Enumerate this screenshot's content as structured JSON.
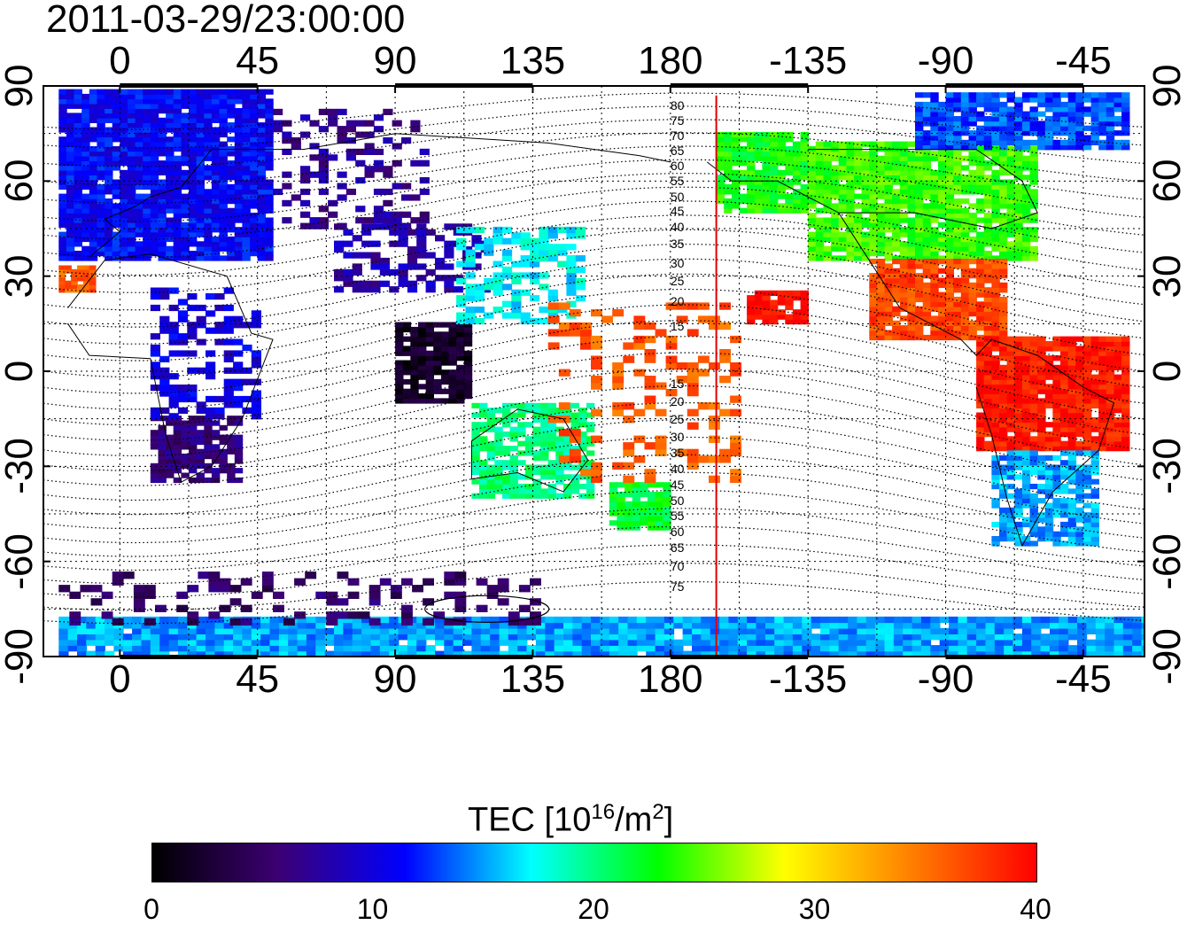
{
  "timestamp": "2011-03-29/23:00:00",
  "map": {
    "x_ticks": [
      {
        "lon": 0,
        "label": "0"
      },
      {
        "lon": 45,
        "label": "45"
      },
      {
        "lon": 90,
        "label": "90"
      },
      {
        "lon": 135,
        "label": "135"
      },
      {
        "lon": 180,
        "label": "180"
      },
      {
        "lon": 225,
        "label": "-135"
      },
      {
        "lon": 270,
        "label": "-90"
      },
      {
        "lon": 315,
        "label": "-45"
      }
    ],
    "y_ticks": [
      {
        "lat": 90,
        "label": "90"
      },
      {
        "lat": 60,
        "label": "60"
      },
      {
        "lat": 30,
        "label": "30"
      },
      {
        "lat": 0,
        "label": "0"
      },
      {
        "lat": -30,
        "label": "-30"
      },
      {
        "lat": -60,
        "label": "-60"
      },
      {
        "lat": -90,
        "label": "-90"
      }
    ],
    "marker_longitude": 195,
    "marker_color": "#e00000",
    "contour_labels": [
      "80",
      "75",
      "70",
      "65",
      "60",
      "55",
      "50",
      "45",
      "40",
      "35",
      "30",
      "25",
      "20",
      "15",
      "15",
      "20",
      "25",
      "30",
      "35",
      "40",
      "45",
      "50",
      "55",
      "60",
      "65",
      "70",
      "75"
    ],
    "tec_regions": [
      {
        "name": "europe-asia-north",
        "tec": 11
      },
      {
        "name": "siberia",
        "tec": 7
      },
      {
        "name": "china",
        "tec": 8
      },
      {
        "name": "southeast-asia",
        "tec": 2
      },
      {
        "name": "japan-east-asia",
        "tec": 17
      },
      {
        "name": "africa-south",
        "tec": 6
      },
      {
        "name": "africa-central",
        "tec": 10
      },
      {
        "name": "australia",
        "tec": 20
      },
      {
        "name": "new-zealand",
        "tec": 22
      },
      {
        "name": "pacific-north",
        "tec": 23
      },
      {
        "name": "north-america",
        "tec": 24
      },
      {
        "name": "greenland-arctic",
        "tec": 13
      },
      {
        "name": "mexico-central-america",
        "tec": 37
      },
      {
        "name": "south-america-equatorial",
        "tec": 39
      },
      {
        "name": "south-america-south",
        "tec": 15
      },
      {
        "name": "antarctica",
        "tec": 15
      },
      {
        "name": "southern-ocean-west",
        "tec": 5
      },
      {
        "name": "pacific-equatorial",
        "tec": 36
      }
    ]
  },
  "colorbar": {
    "title": "TEC  [10",
    "title_sup": "16",
    "title_unit": "/m",
    "title_sup2": "2",
    "title_end": "]",
    "min": 0,
    "max": 40,
    "labels": [
      "0",
      "10",
      "20",
      "30",
      "40"
    ],
    "stops": [
      "#000000",
      "#3c0073",
      "#0000ff",
      "#00ffff",
      "#00ff00",
      "#ffff00",
      "#ff8000",
      "#ff0000"
    ]
  }
}
